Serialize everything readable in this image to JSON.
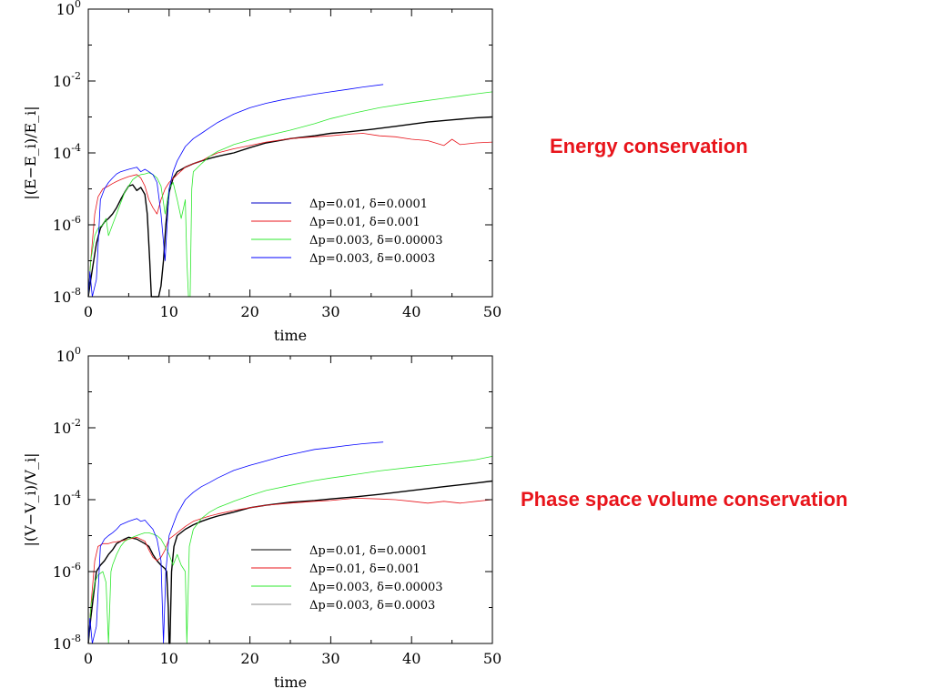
{
  "page": {
    "annotations": [
      {
        "text": "Energy conservation",
        "color": "#e8141b"
      },
      {
        "text": "Phase space volume conservation",
        "color": "#e8141b"
      }
    ]
  },
  "chart_data": [
    {
      "type": "line",
      "title": "",
      "xlabel": "time",
      "ylabel": "|(E−E_i)/E_i|",
      "xscale": "linear",
      "yscale": "log",
      "xlim": [
        0,
        50
      ],
      "ylim": [
        1e-08,
        1
      ],
      "xticks": [
        "0",
        "10",
        "20",
        "30",
        "40",
        "50"
      ],
      "yticks": [
        {
          "mantissa": "10",
          "exp": "0",
          "value": 1
        },
        {
          "mantissa": "10",
          "exp": "-2",
          "value": 0.01
        },
        {
          "mantissa": "10",
          "exp": "-4",
          "value": 0.0001
        },
        {
          "mantissa": "10",
          "exp": "-6",
          "value": 1e-06
        },
        {
          "mantissa": "10",
          "exp": "-8",
          "value": 1e-08
        }
      ],
      "grid": false,
      "legend_position": "center-right",
      "series": [
        {
          "name": "Δp=0.01,  δ=0.0001",
          "color": "#000000",
          "swatch_color": "#0000c8",
          "x": [
            0,
            0.3,
            1,
            1.5,
            2,
            2.5,
            3,
            3.5,
            4,
            4.5,
            5,
            5.5,
            6,
            6.5,
            7,
            7.3,
            7.6,
            7.8,
            8,
            8.2,
            8.5,
            8.7,
            9,
            9.3,
            9.6,
            10,
            10.5,
            11,
            12,
            13,
            14,
            15,
            16,
            17,
            18,
            20,
            22,
            25,
            28,
            30,
            32,
            35,
            38,
            40,
            42,
            45,
            48,
            50
          ],
          "y": [
            1e-08,
            3e-08,
            3e-07,
            8e-07,
            1.2e-06,
            1.5e-06,
            2e-06,
            3e-06,
            5e-06,
            8e-06,
            1.2e-05,
            1.3e-05,
            9e-06,
            1.1e-05,
            7e-06,
            2e-06,
            1e-07,
            1e-08,
            1e-08,
            1e-08,
            1e-08,
            1e-08,
            2e-08,
            1e-07,
            1e-06,
            8e-06,
            2e-05,
            3e-05,
            4e-05,
            5e-05,
            6e-05,
            7e-05,
            8e-05,
            9e-05,
            0.0001,
            0.00014,
            0.00019,
            0.00025,
            0.0003,
            0.00035,
            0.00038,
            0.00045,
            0.00055,
            0.00063,
            0.00072,
            0.00083,
            0.00095,
            0.001
          ]
        },
        {
          "name": "Δp=0.01,  δ=0.001",
          "color": "#e8141b",
          "x": [
            0,
            0.3,
            0.8,
            1.2,
            1.8,
            2.5,
            3,
            3.5,
            4,
            4.5,
            5,
            6,
            6.5,
            7,
            7.5,
            8,
            8.5,
            9,
            9.5,
            10,
            11,
            12,
            13,
            14,
            15,
            16,
            18,
            20,
            22,
            25,
            28,
            30,
            32,
            34,
            36,
            38,
            40,
            42,
            44,
            45,
            46,
            48,
            50
          ],
          "y": [
            1e-08,
            1e-07,
            2e-06,
            6e-06,
            1e-05,
            1.2e-05,
            1.4e-05,
            1.6e-05,
            1.8e-05,
            2e-05,
            2.2e-05,
            2.5e-05,
            2e-05,
            1.2e-05,
            5e-06,
            3e-06,
            2e-06,
            5e-06,
            1e-05,
            1.5e-05,
            2.5e-05,
            4e-05,
            5e-05,
            6e-05,
            8e-05,
            0.0001,
            0.00013,
            0.00016,
            0.0002,
            0.00025,
            0.00028,
            0.0003,
            0.00033,
            0.00035,
            0.0003,
            0.00028,
            0.00024,
            0.00022,
            0.00016,
            0.00024,
            0.00017,
            0.00019,
            0.0002
          ]
        },
        {
          "name": "Δp=0.003,  δ=0.00003",
          "color": "#2ee82e",
          "x": [
            0,
            0.3,
            0.8,
            1.2,
            1.8,
            2.2,
            2.5,
            3,
            3.5,
            4,
            4.5,
            5,
            5.5,
            6,
            6.5,
            7,
            7.5,
            8,
            8.5,
            9,
            9.5,
            10,
            10.5,
            11,
            11.5,
            12,
            12.2,
            12.4,
            12.6,
            12.8,
            13,
            14,
            15,
            16,
            18,
            20,
            22,
            25,
            28,
            30,
            33,
            36,
            40,
            44,
            48,
            50
          ],
          "y": [
            1e-08,
            1e-07,
            5e-07,
            8e-07,
            1e-06,
            1.5e-06,
            5e-07,
            1e-06,
            2e-06,
            4e-06,
            8e-06,
            1.2e-05,
            1.8e-05,
            2.2e-05,
            2.5e-05,
            2.6e-05,
            2.8e-05,
            2.5e-05,
            2e-05,
            1.2e-05,
            2e-06,
            1e-05,
            1.5e-05,
            5e-06,
            1.5e-06,
            5e-06,
            1e-07,
            1e-08,
            1e-08,
            1e-05,
            3e-05,
            5e-05,
            8e-05,
            0.00011,
            0.00017,
            0.00023,
            0.0003,
            0.00043,
            0.00065,
            0.0009,
            0.0013,
            0.0018,
            0.0025,
            0.0033,
            0.0044,
            0.005
          ]
        },
        {
          "name": "Δp=0.003,  δ=0.0003",
          "color": "#0000ff",
          "x": [
            0,
            0.2,
            0.5,
            1,
            1.5,
            2,
            2.5,
            3,
            3.5,
            4,
            5,
            6,
            6.5,
            7,
            7.5,
            8,
            8.5,
            9,
            9.5,
            10,
            10.5,
            11,
            12,
            13,
            14,
            15,
            16,
            18,
            20,
            22,
            24,
            26,
            28,
            30,
            32,
            34,
            36.5
          ],
          "y": [
            1e-08,
            5e-08,
            1e-08,
            3e-08,
            5e-06,
            1e-05,
            1.5e-05,
            2e-05,
            2.6e-05,
            3e-05,
            3.5e-05,
            4e-05,
            3e-05,
            3.5e-05,
            3e-05,
            2.5e-05,
            1.5e-05,
            2e-06,
            1e-07,
            1e-05,
            3e-05,
            6e-05,
            0.00015,
            0.00025,
            0.00035,
            0.0005,
            0.0007,
            0.0012,
            0.0018,
            0.0024,
            0.003,
            0.0036,
            0.0043,
            0.005,
            0.0058,
            0.0068,
            0.008
          ]
        }
      ]
    },
    {
      "type": "line",
      "title": "",
      "xlabel": "time",
      "ylabel": "|(V−V_i)/V_i|",
      "xscale": "linear",
      "yscale": "log",
      "xlim": [
        0,
        50
      ],
      "ylim": [
        1e-08,
        1
      ],
      "xticks": [
        "0",
        "10",
        "20",
        "30",
        "40",
        "50"
      ],
      "yticks": [
        {
          "mantissa": "10",
          "exp": "0",
          "value": 1
        },
        {
          "mantissa": "10",
          "exp": "-2",
          "value": 0.01
        },
        {
          "mantissa": "10",
          "exp": "-4",
          "value": 0.0001
        },
        {
          "mantissa": "10",
          "exp": "-6",
          "value": 1e-06
        },
        {
          "mantissa": "10",
          "exp": "-8",
          "value": 1e-08
        }
      ],
      "grid": false,
      "legend_position": "center-right",
      "series": [
        {
          "name": "Δp=0.01,  δ=0.0001",
          "color": "#000000",
          "x": [
            0,
            0.3,
            1,
            1.5,
            2,
            2.5,
            3,
            3.5,
            4,
            4.5,
            5,
            6,
            7,
            7.5,
            8,
            8.5,
            9,
            9.5,
            9.7,
            9.9,
            10,
            10.1,
            10.3,
            10.6,
            11,
            12,
            13,
            14,
            15,
            16,
            18,
            20,
            22,
            25,
            28,
            30,
            33,
            36,
            40,
            44,
            48,
            50
          ],
          "y": [
            1e-08,
            5e-08,
            1e-06,
            1.5e-06,
            2e-06,
            3e-06,
            4e-06,
            6e-06,
            7e-06,
            8e-06,
            9e-06,
            8e-06,
            6e-06,
            5e-06,
            3e-06,
            2e-06,
            1.5e-06,
            1.2e-06,
            1e-06,
            1e-07,
            1e-08,
            1e-08,
            1e-06,
            5e-06,
            1e-05,
            1.5e-05,
            2e-05,
            2.5e-05,
            3e-05,
            3.5e-05,
            4.5e-05,
            6e-05,
            7e-05,
            8.5e-05,
            9.5e-05,
            0.000105,
            0.00012,
            0.00014,
            0.00018,
            0.00023,
            0.00029,
            0.00033
          ]
        },
        {
          "name": "Δp=0.01,  δ=0.001",
          "color": "#e8141b",
          "x": [
            0,
            0.3,
            0.8,
            1.2,
            1.8,
            2.5,
            3,
            4,
            5,
            6,
            7,
            7.5,
            8,
            8.5,
            9,
            9.5,
            10,
            11,
            12,
            13,
            14,
            15,
            16,
            18,
            20,
            22,
            25,
            28,
            30,
            33,
            36,
            38,
            40,
            42,
            44,
            46,
            48,
            50
          ],
          "y": [
            1e-08,
            1e-07,
            2e-06,
            5e-06,
            6e-06,
            6e-06,
            6.5e-06,
            7e-06,
            8e-06,
            9e-06,
            7e-06,
            4e-06,
            2.5e-06,
            2e-06,
            2.5e-06,
            4e-06,
            8e-06,
            1.2e-05,
            1.8e-05,
            2.5e-05,
            3e-05,
            3.5e-05,
            4e-05,
            5e-05,
            6e-05,
            7e-05,
            8e-05,
            9e-05,
            9.5e-05,
            0.00011,
            0.000105,
            0.0001,
            9e-05,
            8e-05,
            9e-05,
            8e-05,
            9e-05,
            0.0001
          ]
        },
        {
          "name": "Δp=0.003,  δ=0.00003",
          "color": "#2ee82e",
          "x": [
            0,
            0.3,
            0.8,
            1.2,
            1.8,
            2.2,
            2.5,
            2.8,
            3,
            3.5,
            4,
            4.5,
            5,
            5.5,
            6,
            6.5,
            7,
            7.5,
            8,
            8.5,
            9,
            9.5,
            10,
            10.5,
            11,
            11.5,
            12,
            12.2,
            12.5,
            13,
            14,
            15,
            16,
            18,
            20,
            22,
            25,
            28,
            30,
            33,
            36,
            40,
            44,
            48,
            50
          ],
          "y": [
            1e-08,
            1e-07,
            5e-07,
            8e-07,
            1e-06,
            5e-07,
            1e-08,
            1e-06,
            1.5e-06,
            3e-06,
            5e-06,
            7e-06,
            8e-06,
            9e-06,
            1e-05,
            1.1e-05,
            1.2e-05,
            1.2e-05,
            1.1e-05,
            1e-05,
            8e-06,
            5e-06,
            3e-06,
            1.5e-06,
            3e-06,
            1.5e-06,
            1e-06,
            1e-08,
            5e-06,
            1.5e-05,
            3e-05,
            4.5e-05,
            6e-05,
            9e-05,
            0.00013,
            0.00018,
            0.00025,
            0.00034,
            0.0004,
            0.0005,
            0.00063,
            0.0008,
            0.001,
            0.0013,
            0.0016
          ]
        },
        {
          "name": "Δp=0.003,  δ=0.0003",
          "color": "#0000ff",
          "swatch_color": "#888888",
          "x": [
            0,
            0.2,
            0.5,
            1,
            1.5,
            2,
            2.5,
            3,
            3.5,
            4,
            5,
            6,
            6.5,
            7,
            7.5,
            8,
            8.5,
            9,
            9.3,
            9.6,
            10,
            10.5,
            11,
            12,
            13,
            14,
            15,
            16,
            18,
            20,
            22,
            24,
            26,
            28,
            30,
            32,
            34,
            36.5
          ],
          "y": [
            1e-08,
            5e-08,
            1e-08,
            3e-08,
            5e-06,
            8e-06,
            1e-05,
            1.2e-05,
            1.5e-05,
            2e-05,
            2.5e-05,
            3e-05,
            2.5e-05,
            2.7e-05,
            2e-05,
            1.5e-05,
            8e-06,
            2e-06,
            1e-08,
            1e-06,
            1e-05,
            2e-05,
            4e-05,
            0.0001,
            0.00016,
            0.00023,
            0.0003,
            0.0004,
            0.00065,
            0.0009,
            0.0012,
            0.0016,
            0.002,
            0.0025,
            0.0028,
            0.0032,
            0.0036,
            0.004
          ]
        }
      ]
    }
  ]
}
